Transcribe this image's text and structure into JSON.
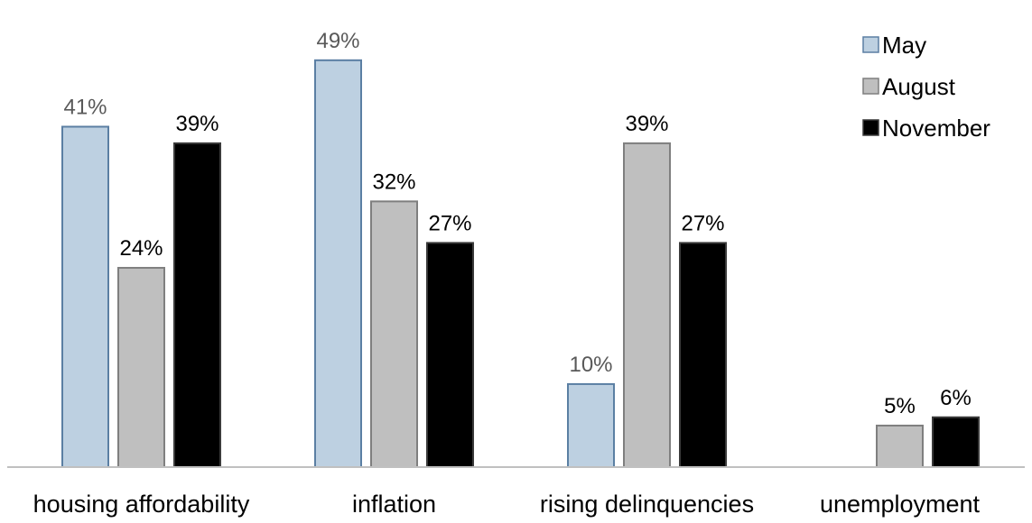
{
  "chart_data": {
    "type": "bar",
    "categories": [
      "housing affordability",
      "inflation",
      "rising delinquencies",
      "unemployment"
    ],
    "series": [
      {
        "name": "May",
        "values": [
          41,
          49,
          10,
          null
        ],
        "color": "#bdd0e1",
        "border": "#5b7fa3",
        "label_color": "#595959"
      },
      {
        "name": "August",
        "values": [
          24,
          32,
          39,
          5
        ],
        "color": "#bfbfbf",
        "border": "#7f7f7f",
        "label_color": "#000000"
      },
      {
        "name": "November",
        "values": [
          39,
          27,
          27,
          6
        ],
        "color": "#000000",
        "border": "#3a3a3a",
        "label_color": "#000000"
      }
    ],
    "value_suffix": "%",
    "ylim": [
      0,
      53
    ],
    "grid": false,
    "legend_position": "top-right",
    "axis_line_color": "#c0c0c0"
  }
}
